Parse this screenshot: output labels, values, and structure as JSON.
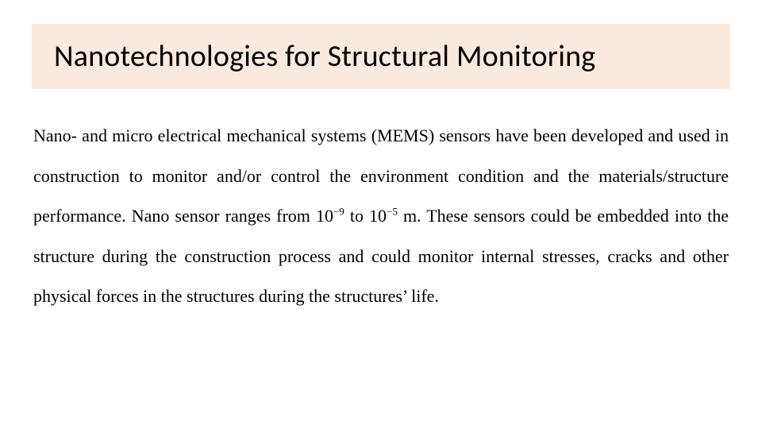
{
  "slide": {
    "title": "Nanotechnologies for Structural Monitoring",
    "body_html": "Nano- and micro electrical mechanical systems (MEMS) sensors have been developed and used in construction to monitor and/or control the environment condition and the materials/structure performance. Nano sensor ranges from 10<sup>−9</sup> to 10<sup>−5</sup> m. These sensors could be embedded into the structure during the construction process and could monitor internal stresses, cracks and other physical forces in the structures during the structures’ life.",
    "colors": {
      "title_background": "#faeadd",
      "slide_background": "#ffffff",
      "text_color": "#000000"
    },
    "typography": {
      "title_font": "Calibri",
      "title_fontsize_pt": 28,
      "body_font": "Times New Roman",
      "body_fontsize_pt": 16,
      "body_align": "justify",
      "body_line_height": 2.3
    }
  }
}
